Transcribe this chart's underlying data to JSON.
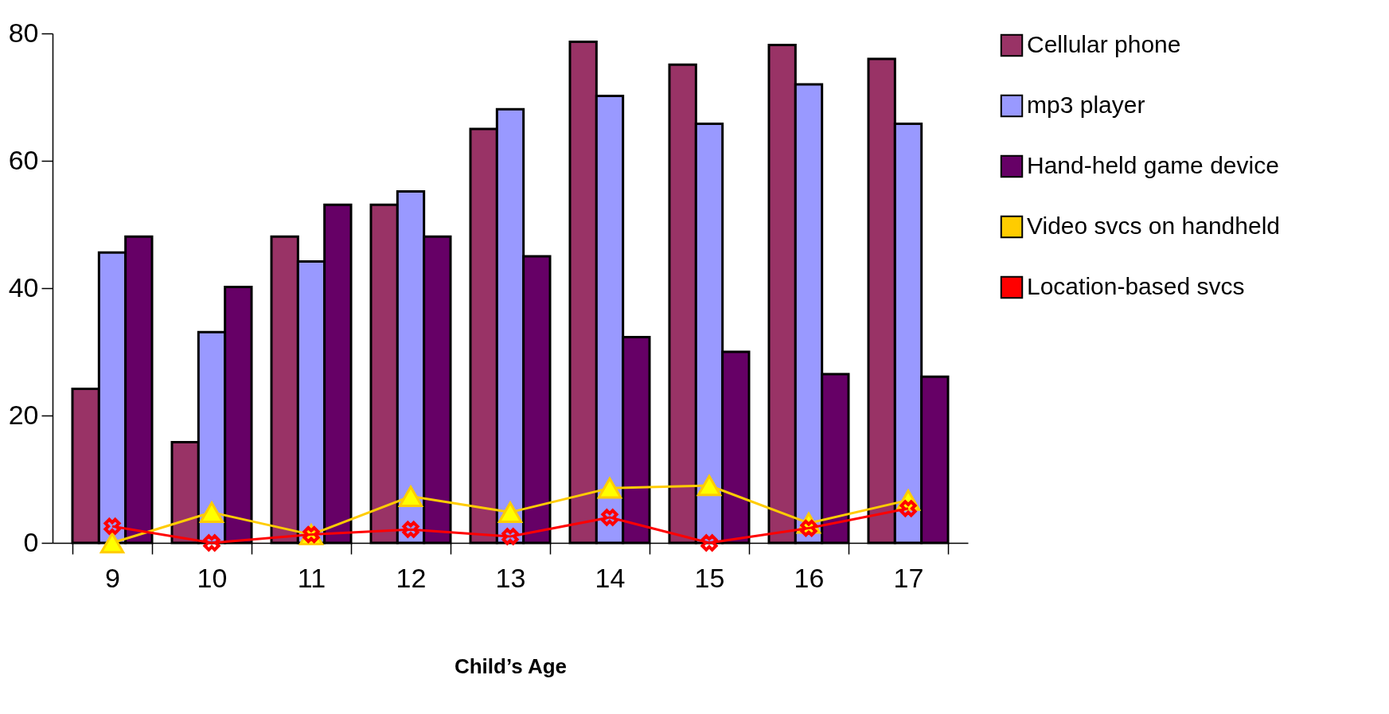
{
  "chart_data": {
    "type": "bar",
    "xlabel": "Child’s Age",
    "categories": [
      "9",
      "10",
      "11",
      "12",
      "13",
      "14",
      "15",
      "16",
      "17"
    ],
    "ylim": [
      0,
      80
    ],
    "yticks": [
      0,
      20,
      40,
      60,
      80
    ],
    "grid": false,
    "legend": "right",
    "series": [
      {
        "name": "Cellular phone",
        "color": "#993366",
        "values": [
          24.2,
          15.8,
          48.1,
          53.1,
          65.0,
          78.7,
          75.1,
          78.2,
          76.0
        ]
      },
      {
        "name": "mp3 player",
        "color": "#9999ff",
        "values": [
          45.6,
          33.1,
          44.2,
          55.2,
          68.1,
          70.2,
          65.8,
          72.0,
          65.8
        ]
      },
      {
        "name": "Hand-held game device",
        "color": "#660066",
        "values": [
          48.1,
          40.2,
          53.1,
          48.1,
          45.0,
          32.3,
          30.0,
          26.5,
          26.1
        ]
      },
      {
        "name": "Video svcs on handheld",
        "type": "line",
        "color": "#ffcc00",
        "marker": "triangle",
        "values": [
          0,
          4.8,
          1.3,
          7.3,
          4.8,
          8.6,
          9.0,
          3.1,
          6.7
        ]
      },
      {
        "name": "Location-based svcs",
        "type": "line",
        "color": "#ff0000",
        "marker": "cross",
        "values": [
          2.6,
          0,
          1.3,
          2.1,
          1.0,
          4.0,
          0,
          2.3,
          5.4
        ]
      }
    ]
  }
}
